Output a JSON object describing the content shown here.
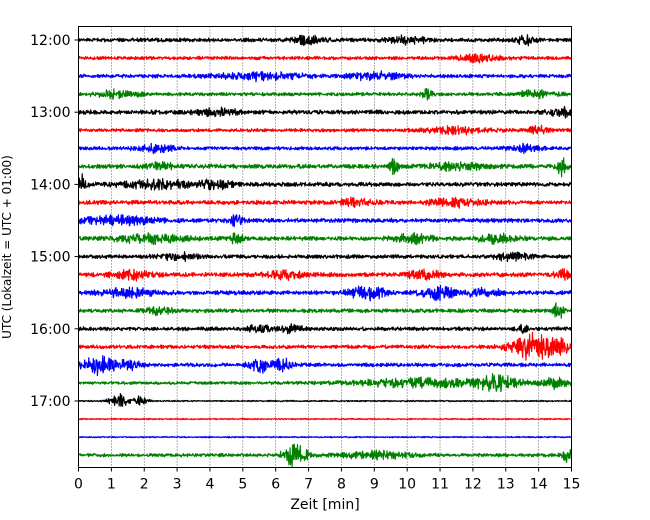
{
  "chart_data": {
    "type": "line",
    "title": "",
    "xlabel": "Zeit  [min]",
    "ylabel": "UTC (Lokalzeit = UTC + 01:00)",
    "xlim": [
      0,
      15
    ],
    "x_ticks": [
      0,
      1,
      2,
      3,
      4,
      5,
      6,
      7,
      8,
      9,
      10,
      11,
      12,
      13,
      14,
      15
    ],
    "x_tick_labels": [
      "0",
      "1",
      "2",
      "3",
      "4",
      "5",
      "6",
      "7",
      "8",
      "9",
      "10",
      "11",
      "12",
      "13",
      "14",
      "15"
    ],
    "y_ticks": [
      "12:00",
      "13:00",
      "14:00",
      "15:00",
      "16:00",
      "17:00"
    ],
    "trace_interval_minutes": 15,
    "grid": {
      "x": true,
      "style": "dotted",
      "y": false
    },
    "legend": "none",
    "trace_colors": [
      "#000000",
      "#ff0000",
      "#0000ff",
      "#008000"
    ],
    "series": [
      {
        "start": "12:00",
        "color": "#000000",
        "amplitude": 0.22,
        "bursts": [
          {
            "x": 7.0,
            "a": 0.45,
            "w": 0.5
          },
          {
            "x": 10.0,
            "a": 0.4,
            "w": 0.6
          },
          {
            "x": 13.6,
            "a": 0.6,
            "w": 0.25
          }
        ]
      },
      {
        "start": "12:15",
        "color": "#ff0000",
        "amplitude": 0.2,
        "bursts": [
          {
            "x": 12.2,
            "a": 0.4,
            "w": 0.6
          }
        ]
      },
      {
        "start": "12:30",
        "color": "#0000ff",
        "amplitude": 0.22,
        "bursts": [
          {
            "x": 5.5,
            "a": 0.45,
            "w": 1.2
          },
          {
            "x": 9.0,
            "a": 0.4,
            "w": 0.8
          }
        ]
      },
      {
        "start": "12:45",
        "color": "#008000",
        "amplitude": 0.2,
        "bursts": [
          {
            "x": 1.2,
            "a": 0.5,
            "w": 0.6
          },
          {
            "x": 10.6,
            "a": 0.5,
            "w": 0.15
          },
          {
            "x": 13.9,
            "a": 0.35,
            "w": 0.6
          }
        ]
      },
      {
        "start": "13:00",
        "color": "#000000",
        "amplitude": 0.25,
        "bursts": [
          {
            "x": 4.2,
            "a": 0.5,
            "w": 0.5
          },
          {
            "x": 14.8,
            "a": 0.45,
            "w": 0.5
          }
        ]
      },
      {
        "start": "13:15",
        "color": "#ff0000",
        "amplitude": 0.2,
        "bursts": [
          {
            "x": 11.5,
            "a": 0.35,
            "w": 1.0
          },
          {
            "x": 14.0,
            "a": 0.45,
            "w": 0.3
          }
        ]
      },
      {
        "start": "13:30",
        "color": "#0000ff",
        "amplitude": 0.2,
        "bursts": [
          {
            "x": 2.3,
            "a": 0.4,
            "w": 0.6
          },
          {
            "x": 13.5,
            "a": 0.4,
            "w": 0.5
          }
        ]
      },
      {
        "start": "13:45",
        "color": "#008000",
        "amplitude": 0.25,
        "bursts": [
          {
            "x": 2.5,
            "a": 0.4,
            "w": 0.4
          },
          {
            "x": 9.6,
            "a": 0.9,
            "w": 0.12
          },
          {
            "x": 11.5,
            "a": 0.4,
            "w": 0.8
          },
          {
            "x": 14.7,
            "a": 1.0,
            "w": 0.15
          }
        ]
      },
      {
        "start": "14:00",
        "color": "#000000",
        "amplitude": 0.25,
        "bursts": [
          {
            "x": 0.1,
            "a": 1.0,
            "w": 0.15
          },
          {
            "x": 2.5,
            "a": 0.45,
            "w": 1.2
          },
          {
            "x": 4.2,
            "a": 0.5,
            "w": 0.4
          }
        ]
      },
      {
        "start": "14:15",
        "color": "#ff0000",
        "amplitude": 0.25,
        "bursts": [
          {
            "x": 8.5,
            "a": 0.45,
            "w": 0.5
          },
          {
            "x": 11.5,
            "a": 0.4,
            "w": 0.8
          }
        ]
      },
      {
        "start": "14:30",
        "color": "#0000ff",
        "amplitude": 0.25,
        "bursts": [
          {
            "x": 1.2,
            "a": 0.5,
            "w": 1.0
          },
          {
            "x": 4.8,
            "a": 0.7,
            "w": 0.2
          }
        ]
      },
      {
        "start": "14:45",
        "color": "#008000",
        "amplitude": 0.25,
        "bursts": [
          {
            "x": 2.2,
            "a": 0.45,
            "w": 1.0
          },
          {
            "x": 4.8,
            "a": 0.55,
            "w": 0.2
          },
          {
            "x": 10.2,
            "a": 0.5,
            "w": 0.5
          },
          {
            "x": 12.8,
            "a": 0.45,
            "w": 0.6
          }
        ]
      },
      {
        "start": "15:00",
        "color": "#000000",
        "amplitude": 0.22,
        "bursts": [
          {
            "x": 3.0,
            "a": 0.4,
            "w": 0.6
          },
          {
            "x": 13.2,
            "a": 0.45,
            "w": 0.5
          }
        ]
      },
      {
        "start": "15:15",
        "color": "#ff0000",
        "amplitude": 0.25,
        "bursts": [
          {
            "x": 1.6,
            "a": 0.5,
            "w": 0.6
          },
          {
            "x": 6.3,
            "a": 0.55,
            "w": 0.5
          },
          {
            "x": 10.5,
            "a": 0.5,
            "w": 0.5
          },
          {
            "x": 14.8,
            "a": 0.5,
            "w": 0.3
          }
        ]
      },
      {
        "start": "15:30",
        "color": "#0000ff",
        "amplitude": 0.25,
        "bursts": [
          {
            "x": 1.5,
            "a": 0.5,
            "w": 0.8
          },
          {
            "x": 8.8,
            "a": 0.8,
            "w": 0.5
          },
          {
            "x": 10.9,
            "a": 0.8,
            "w": 0.5
          },
          {
            "x": 12.3,
            "a": 0.5,
            "w": 0.5
          }
        ]
      },
      {
        "start": "15:45",
        "color": "#008000",
        "amplitude": 0.22,
        "bursts": [
          {
            "x": 2.4,
            "a": 0.45,
            "w": 0.4
          },
          {
            "x": 14.6,
            "a": 0.9,
            "w": 0.15
          }
        ]
      },
      {
        "start": "16:00",
        "color": "#000000",
        "amplitude": 0.22,
        "bursts": [
          {
            "x": 5.5,
            "a": 0.5,
            "w": 0.3
          },
          {
            "x": 6.5,
            "a": 0.5,
            "w": 0.3
          },
          {
            "x": 13.5,
            "a": 0.6,
            "w": 0.15
          }
        ]
      },
      {
        "start": "16:15",
        "color": "#ff0000",
        "amplitude": 0.22,
        "bursts": [
          {
            "x": 13.8,
            "a": 1.6,
            "w": 0.6
          },
          {
            "x": 14.6,
            "a": 1.0,
            "w": 0.3
          }
        ]
      },
      {
        "start": "16:30",
        "color": "#0000ff",
        "amplitude": 0.22,
        "bursts": [
          {
            "x": 0.6,
            "a": 1.0,
            "w": 0.5
          },
          {
            "x": 1.5,
            "a": 0.5,
            "w": 0.4
          },
          {
            "x": 5.5,
            "a": 0.9,
            "w": 0.3
          },
          {
            "x": 6.2,
            "a": 0.7,
            "w": 0.25
          }
        ]
      },
      {
        "start": "16:45",
        "color": "#008000",
        "amplitude": 0.18,
        "bursts": [
          {
            "x": 10.5,
            "a": 0.5,
            "w": 2.0
          },
          {
            "x": 12.8,
            "a": 0.8,
            "w": 0.6
          },
          {
            "x": 14.5,
            "a": 0.6,
            "w": 0.4
          }
        ]
      },
      {
        "start": "17:00",
        "color": "#000000",
        "amplitude": 0.08,
        "bursts": [
          {
            "x": 1.2,
            "a": 0.8,
            "w": 0.3
          },
          {
            "x": 1.9,
            "a": 0.6,
            "w": 0.2
          }
        ]
      },
      {
        "start": "17:15",
        "color": "#ff0000",
        "amplitude": 0.08,
        "bursts": []
      },
      {
        "start": "17:30",
        "color": "#0000ff",
        "amplitude": 0.08,
        "bursts": []
      },
      {
        "start": "17:45",
        "color": "#008000",
        "amplitude": 0.2,
        "bursts": [
          {
            "x": 6.6,
            "a": 1.3,
            "w": 0.35
          },
          {
            "x": 9.0,
            "a": 0.4,
            "w": 1.0
          },
          {
            "x": 14.9,
            "a": 1.0,
            "w": 0.15
          }
        ]
      }
    ]
  }
}
